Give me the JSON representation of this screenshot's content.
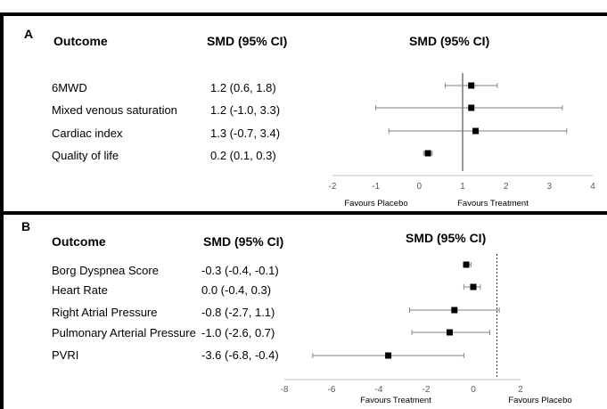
{
  "chart_data": [
    {
      "type": "forest",
      "panel_label": "A",
      "header_outcome": "Outcome",
      "header_estimate": "SMD (95% CI)",
      "plot_title": "SMD (95% CI)",
      "rows": [
        {
          "outcome": "6MWD",
          "estimate_text": "1.2  (0.6, 1.8)",
          "smd": 1.2,
          "lower": 0.6,
          "upper": 1.8
        },
        {
          "outcome": "Mixed venous saturation",
          "estimate_text": "1.2  (-1.0, 3.3)",
          "smd": 1.2,
          "lower": -1.0,
          "upper": 3.3
        },
        {
          "outcome": "Cardiac index",
          "estimate_text": "1.3  (-0.7, 3.4)",
          "smd": 1.3,
          "lower": -0.7,
          "upper": 3.4
        },
        {
          "outcome": "Quality of life",
          "estimate_text": "0.2  (0.1, 0.3)",
          "smd": 0.2,
          "lower": 0.1,
          "upper": 0.3
        }
      ],
      "xlim": [
        -2,
        4
      ],
      "ticks": [
        "-2",
        "-1",
        "0",
        "1",
        "2",
        "3",
        "4"
      ],
      "reference_line": 1,
      "favours_left": "Favours Placebo",
      "favours_right": "Favours Treatment"
    },
    {
      "type": "forest",
      "panel_label": "B",
      "header_outcome": "Outcome",
      "header_estimate": "SMD (95% CI)",
      "plot_title": "SMD (95% CI)",
      "rows": [
        {
          "outcome": "Borg Dyspnea Score",
          "estimate_text": "-0.3 (-0.4, -0.1)",
          "smd": -0.3,
          "lower": -0.4,
          "upper": -0.1
        },
        {
          "outcome": "Heart Rate",
          "estimate_text": "0.0 (-0.4, 0.3)",
          "smd": 0.0,
          "lower": -0.4,
          "upper": 0.3
        },
        {
          "outcome": "Right Atrial Pressure",
          "estimate_text": "-0.8 (-2.7, 1.1)",
          "smd": -0.8,
          "lower": -2.7,
          "upper": 1.1
        },
        {
          "outcome": "Pulmonary Arterial Pressure",
          "estimate_text": "-1.0 (-2.6, 0.7)",
          "smd": -1.0,
          "lower": -2.6,
          "upper": 0.7
        },
        {
          "outcome": "PVRI",
          "estimate_text": "-3.6 (-6.8, -0.4)",
          "smd": -3.6,
          "lower": -6.8,
          "upper": -0.4
        }
      ],
      "xlim": [
        -8,
        2
      ],
      "ticks": [
        "-8",
        "-6",
        "-4",
        "-2",
        "0",
        "2"
      ],
      "reference_line": 1,
      "favours_left": "Favours Treatment",
      "favours_right": "Favours Placebo"
    }
  ]
}
